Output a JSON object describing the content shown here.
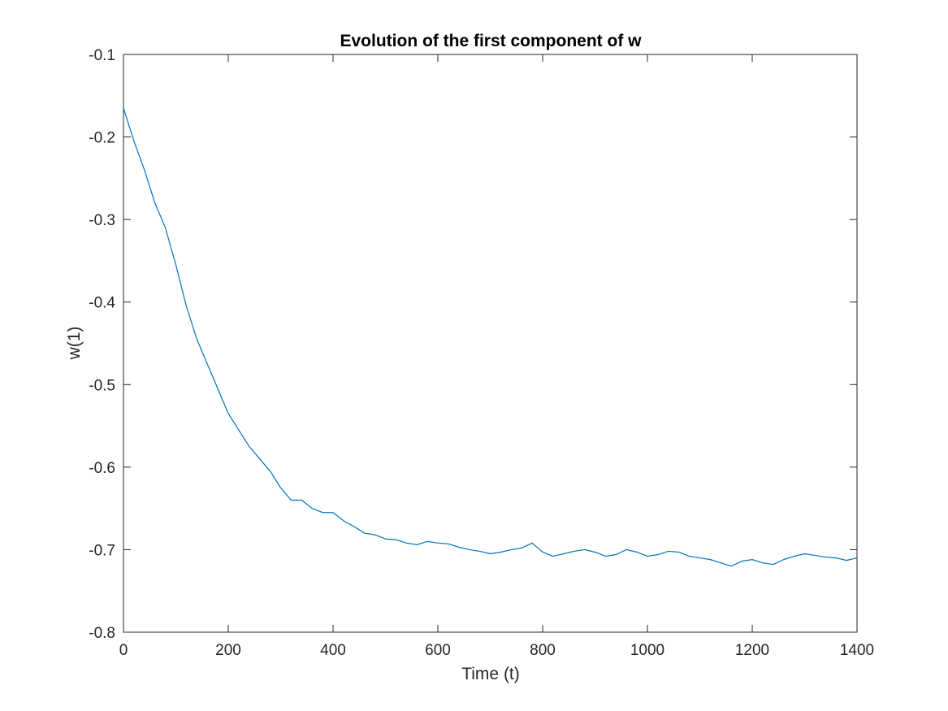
{
  "chart_data": {
    "type": "line",
    "title": "Evolution of the first component of w",
    "xlabel": "Time (t)",
    "ylabel": "w(1)",
    "xlim": [
      0,
      1400
    ],
    "ylim": [
      -0.8,
      -0.1
    ],
    "xticks": [
      0,
      200,
      400,
      600,
      800,
      1000,
      1200,
      1400
    ],
    "yticks": [
      -0.8,
      -0.7,
      -0.6,
      -0.5,
      -0.4,
      -0.3,
      -0.2,
      -0.1
    ],
    "xtick_labels": [
      "0",
      "200",
      "400",
      "600",
      "800",
      "1000",
      "1200",
      "1400"
    ],
    "ytick_labels": [
      "-0.8",
      "-0.7",
      "-0.6",
      "-0.5",
      "-0.4",
      "-0.3",
      "-0.2",
      "-0.1"
    ],
    "grid": false,
    "box": true,
    "series": [
      {
        "color": "#0072BD",
        "x": [
          0,
          20,
          40,
          60,
          80,
          100,
          120,
          140,
          160,
          180,
          200,
          220,
          240,
          260,
          280,
          300,
          320,
          340,
          360,
          380,
          400,
          420,
          440,
          460,
          480,
          500,
          520,
          540,
          560,
          580,
          600,
          620,
          640,
          660,
          680,
          700,
          720,
          740,
          760,
          780,
          800,
          820,
          840,
          860,
          880,
          900,
          920,
          940,
          960,
          980,
          1000,
          1020,
          1040,
          1060,
          1080,
          1100,
          1120,
          1140,
          1160,
          1180,
          1200,
          1220,
          1240,
          1260,
          1280,
          1300,
          1320,
          1340,
          1360,
          1380,
          1400
        ],
        "y": [
          -0.165,
          -0.205,
          -0.24,
          -0.28,
          -0.31,
          -0.355,
          -0.405,
          -0.445,
          -0.475,
          -0.505,
          -0.535,
          -0.555,
          -0.575,
          -0.59,
          -0.605,
          -0.625,
          -0.64,
          -0.64,
          -0.65,
          -0.655,
          -0.655,
          -0.665,
          -0.672,
          -0.68,
          -0.682,
          -0.687,
          -0.688,
          -0.692,
          -0.694,
          -0.69,
          -0.692,
          -0.693,
          -0.697,
          -0.7,
          -0.702,
          -0.705,
          -0.703,
          -0.7,
          -0.698,
          -0.692,
          -0.703,
          -0.708,
          -0.705,
          -0.702,
          -0.7,
          -0.703,
          -0.708,
          -0.706,
          -0.7,
          -0.703,
          -0.708,
          -0.706,
          -0.702,
          -0.703,
          -0.708,
          -0.71,
          -0.712,
          -0.716,
          -0.72,
          -0.714,
          -0.712,
          -0.716,
          -0.718,
          -0.712,
          -0.708,
          -0.705,
          -0.707,
          -0.709,
          -0.71,
          -0.713,
          -0.71
        ]
      }
    ]
  }
}
